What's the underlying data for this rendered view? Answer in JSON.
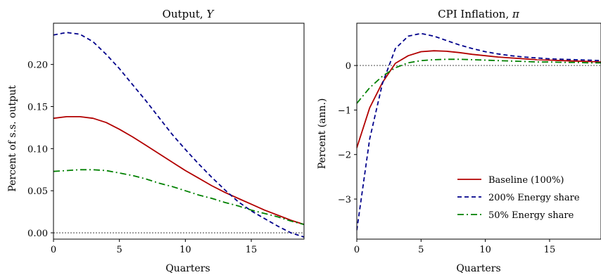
{
  "chart_data": [
    {
      "type": "line",
      "title": "Output, ",
      "title_symbol": "Y",
      "xlabel": "Quarters",
      "ylabel": "Percent of s.s. output",
      "xlim": [
        0,
        19
      ],
      "ylim": [
        -0.0075,
        0.249
      ],
      "xticks": [
        0,
        5,
        10,
        15
      ],
      "xtick_labels": [
        "0",
        "5",
        "10",
        "15"
      ],
      "yticks": [
        0.0,
        0.05,
        0.1,
        0.15,
        0.2
      ],
      "ytick_labels": [
        "0.00",
        "0.05",
        "0.10",
        "0.15",
        "0.20"
      ],
      "reference_line": 0,
      "x": [
        0,
        1,
        2,
        3,
        4,
        5,
        6,
        7,
        8,
        9,
        10,
        11,
        12,
        13,
        14,
        15,
        16,
        17,
        18,
        19
      ],
      "series": [
        {
          "name": "Baseline (100%)",
          "color": "#b20000",
          "dash": "solid",
          "values": [
            0.136,
            0.138,
            0.138,
            0.136,
            0.131,
            0.123,
            0.114,
            0.104,
            0.094,
            0.084,
            0.074,
            0.065,
            0.056,
            0.048,
            0.041,
            0.034,
            0.027,
            0.021,
            0.015,
            0.01
          ]
        },
        {
          "name": "200% Energy share",
          "color": "#00008b",
          "dash": "dashed",
          "values": [
            0.235,
            0.238,
            0.236,
            0.227,
            0.212,
            0.195,
            0.176,
            0.157,
            0.137,
            0.117,
            0.099,
            0.082,
            0.066,
            0.051,
            0.037,
            0.026,
            0.017,
            0.008,
            0.0,
            -0.005
          ]
        },
        {
          "name": "50% Energy share",
          "color": "#008000",
          "dash": "dashdot",
          "values": [
            0.073,
            0.074,
            0.075,
            0.075,
            0.074,
            0.071,
            0.068,
            0.064,
            0.059,
            0.055,
            0.05,
            0.045,
            0.041,
            0.036,
            0.032,
            0.027,
            0.023,
            0.019,
            0.014,
            0.01
          ]
        }
      ]
    },
    {
      "type": "line",
      "title": "CPI Inflation, ",
      "title_symbol": "π",
      "xlabel": "Quarters",
      "ylabel": "Percent (ann.)",
      "xlim": [
        0,
        19
      ],
      "ylim": [
        -3.9,
        0.95
      ],
      "xticks": [
        0,
        5,
        10,
        15
      ],
      "xtick_labels": [
        "0",
        "5",
        "10",
        "15"
      ],
      "yticks": [
        -3,
        -2,
        -1,
        0
      ],
      "ytick_labels": [
        "−3",
        "−2",
        "−1",
        "0"
      ],
      "reference_line": 0,
      "x": [
        0,
        1,
        2,
        3,
        4,
        5,
        6,
        7,
        8,
        9,
        10,
        11,
        12,
        13,
        14,
        15,
        16,
        17,
        18,
        19
      ],
      "legend": {
        "position": "lower-right"
      },
      "series": [
        {
          "name": "Baseline (100%)",
          "color": "#b20000",
          "dash": "solid",
          "values": [
            -1.85,
            -0.95,
            -0.38,
            0.05,
            0.22,
            0.31,
            0.33,
            0.32,
            0.29,
            0.25,
            0.22,
            0.19,
            0.17,
            0.15,
            0.13,
            0.12,
            0.11,
            0.1,
            0.09,
            0.08
          ]
        },
        {
          "name": "200% Energy share",
          "color": "#00008b",
          "dash": "dashed",
          "values": [
            -3.7,
            -1.65,
            -0.4,
            0.38,
            0.66,
            0.72,
            0.66,
            0.56,
            0.46,
            0.38,
            0.31,
            0.26,
            0.22,
            0.19,
            0.17,
            0.15,
            0.14,
            0.13,
            0.12,
            0.11
          ]
        },
        {
          "name": "50% Energy share",
          "color": "#008000",
          "dash": "dashdot",
          "values": [
            -0.85,
            -0.5,
            -0.24,
            -0.05,
            0.06,
            0.11,
            0.13,
            0.14,
            0.14,
            0.13,
            0.12,
            0.11,
            0.1,
            0.09,
            0.08,
            0.08,
            0.07,
            0.07,
            0.06,
            0.06
          ]
        }
      ]
    }
  ]
}
